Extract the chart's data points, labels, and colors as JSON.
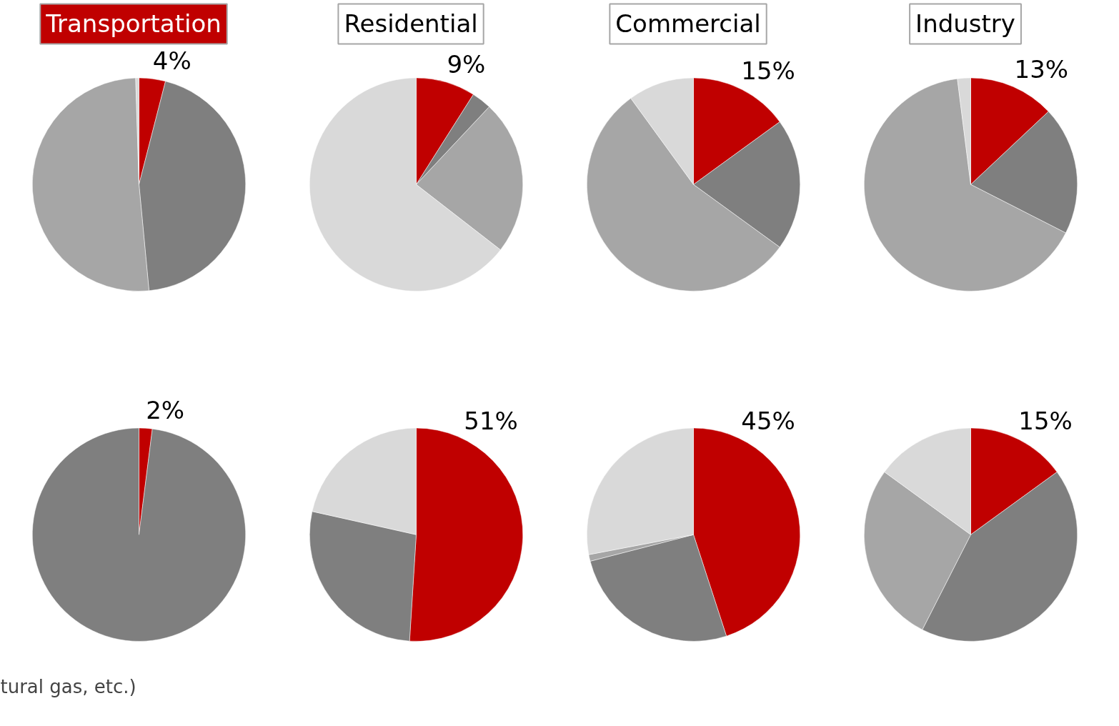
{
  "chart_data": [
    {
      "type": "pie",
      "title": "Transportation",
      "categories": [
        null,
        null,
        null,
        null
      ],
      "values": [
        4,
        44.5,
        51,
        0.5
      ],
      "colors": [
        "#c00000",
        "#7f7f7f",
        "#a6a6a6",
        "#d9d9d9"
      ],
      "value_labels": [
        "4%",
        null,
        null,
        null
      ]
    },
    {
      "type": "pie",
      "title": "Residential",
      "categories": [
        null,
        null,
        null,
        null
      ],
      "values": [
        9,
        3,
        23.5,
        64.5
      ],
      "colors": [
        "#c00000",
        "#7f7f7f",
        "#a6a6a6",
        "#d9d9d9"
      ],
      "value_labels": [
        "9%",
        null,
        null,
        null
      ]
    },
    {
      "type": "pie",
      "title": "Commercial",
      "categories": [
        null,
        null,
        null,
        null
      ],
      "values": [
        15,
        20,
        55,
        10
      ],
      "colors": [
        "#c00000",
        "#7f7f7f",
        "#a6a6a6",
        "#d9d9d9"
      ],
      "value_labels": [
        "15%",
        null,
        null,
        null
      ]
    },
    {
      "type": "pie",
      "title": "Industry",
      "categories": [
        null,
        null,
        null,
        null
      ],
      "values": [
        13,
        19.5,
        65.5,
        2
      ],
      "colors": [
        "#c00000",
        "#7f7f7f",
        "#a6a6a6",
        "#d9d9d9"
      ],
      "value_labels": [
        "13%",
        null,
        null,
        null
      ]
    },
    {
      "type": "pie",
      "categories": [
        null,
        null
      ],
      "values": [
        2,
        98
      ],
      "colors": [
        "#c00000",
        "#7f7f7f"
      ],
      "value_labels": [
        "2%",
        null
      ],
      "annotations": [
        "tural gas, etc.)"
      ]
    },
    {
      "type": "pie",
      "categories": [
        null,
        null,
        null
      ],
      "values": [
        51,
        27.5,
        21.5
      ],
      "colors": [
        "#c00000",
        "#7f7f7f",
        "#d9d9d9"
      ],
      "value_labels": [
        "51%",
        null,
        null
      ]
    },
    {
      "type": "pie",
      "categories": [
        null,
        null,
        null,
        null
      ],
      "values": [
        45,
        26,
        1,
        28
      ],
      "colors": [
        "#c00000",
        "#7f7f7f",
        "#a6a6a6",
        "#d9d9d9"
      ],
      "value_labels": [
        "45%",
        null,
        null,
        null
      ]
    },
    {
      "type": "pie",
      "categories": [
        null,
        null,
        null,
        null
      ],
      "values": [
        15,
        42.5,
        27.5,
        15
      ],
      "colors": [
        "#c00000",
        "#7f7f7f",
        "#a6a6a6",
        "#d9d9d9"
      ],
      "value_labels": [
        "15%",
        null,
        null,
        null
      ]
    }
  ]
}
